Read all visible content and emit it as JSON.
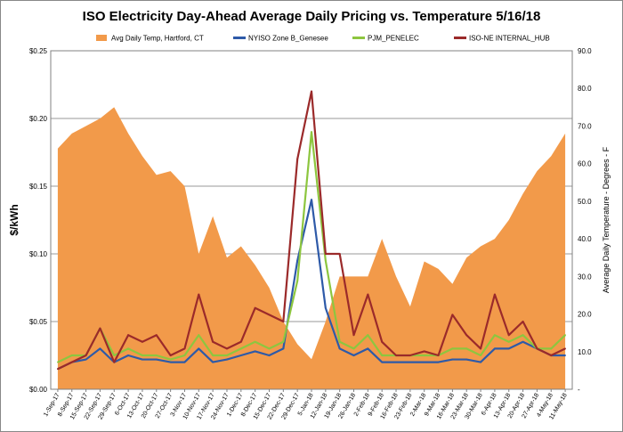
{
  "chart_data": {
    "type": "line",
    "title": "ISO Electricity Day-Ahead Average Daily Pricing vs. Temperature 5/16/18",
    "ylabel": "$/kWh",
    "y2label": "Average Daily Temperature - Degrees - F",
    "ylim": [
      0,
      0.25
    ],
    "y2lim": [
      0,
      90
    ],
    "yticks": [
      "$0.00",
      "$0.05",
      "$0.10",
      "$0.15",
      "$0.20",
      "$0.25"
    ],
    "y2ticks": [
      "-",
      "10.0",
      "20.0",
      "30.0",
      "40.0",
      "50.0",
      "60.0",
      "70.0",
      "80.0",
      "90.0"
    ],
    "grid": true,
    "legend_position": "top",
    "categories": [
      "1-Sep-17",
      "8-Sep-17",
      "15-Sep-17",
      "22-Sep-17",
      "29-Sep-17",
      "6-Oct-17",
      "13-Oct-17",
      "20-Oct-17",
      "27-Oct-17",
      "3-Nov-17",
      "10-Nov-17",
      "17-Nov-17",
      "24-Nov-17",
      "1-Dec-17",
      "8-Dec-17",
      "15-Dec-17",
      "22-Dec-17",
      "29-Dec-17",
      "5-Jan-18",
      "12-Jan-18",
      "19-Jan-18",
      "26-Jan-18",
      "2-Feb-18",
      "9-Feb-18",
      "16-Feb-18",
      "23-Feb-18",
      "2-Mar-18",
      "9-Mar-18",
      "16-Mar-18",
      "23-Mar-18",
      "30-Mar-18",
      "6-Apr-18",
      "13-Apr-18",
      "20-Apr-18",
      "27-Apr-18",
      "4-May-18",
      "11-May-18"
    ],
    "series": [
      {
        "name": "Avg Daily Temp, Hartford, CT",
        "kind": "area",
        "axis": "right",
        "color": "#F29A4A",
        "values": [
          64,
          68,
          70,
          72,
          75,
          68,
          62,
          57,
          58,
          54,
          36,
          46,
          35,
          38,
          33,
          27,
          18,
          12,
          8,
          18,
          30,
          30,
          30,
          40,
          30,
          22,
          34,
          32,
          28,
          35,
          38,
          40,
          45,
          52,
          58,
          62,
          68
        ]
      },
      {
        "name": "NYISO Zone B_Genesee",
        "kind": "line",
        "axis": "left",
        "color": "#2E5AA8",
        "values": [
          0.015,
          0.02,
          0.022,
          0.03,
          0.02,
          0.025,
          0.022,
          0.022,
          0.02,
          0.02,
          0.03,
          0.02,
          0.022,
          0.025,
          0.028,
          0.025,
          0.03,
          0.095,
          0.14,
          0.06,
          0.03,
          0.025,
          0.03,
          0.02,
          0.02,
          0.02,
          0.02,
          0.02,
          0.022,
          0.022,
          0.02,
          0.03,
          0.03,
          0.035,
          0.03,
          0.025,
          0.025
        ]
      },
      {
        "name": "PJM_PENELEC",
        "kind": "line",
        "axis": "left",
        "color": "#8DC63F",
        "values": [
          0.02,
          0.025,
          0.025,
          0.045,
          0.025,
          0.03,
          0.025,
          0.025,
          0.022,
          0.025,
          0.04,
          0.025,
          0.025,
          0.03,
          0.035,
          0.03,
          0.035,
          0.08,
          0.19,
          0.095,
          0.035,
          0.03,
          0.04,
          0.025,
          0.025,
          0.025,
          0.025,
          0.025,
          0.03,
          0.03,
          0.025,
          0.04,
          0.035,
          0.04,
          0.03,
          0.03,
          0.04
        ]
      },
      {
        "name": "ISO-NE INTERNAL_HUB",
        "kind": "line",
        "axis": "left",
        "color": "#9B2A2A",
        "values": [
          0.015,
          0.02,
          0.025,
          0.045,
          0.02,
          0.04,
          0.035,
          0.04,
          0.025,
          0.03,
          0.07,
          0.035,
          0.03,
          0.035,
          0.06,
          0.055,
          0.05,
          0.17,
          0.22,
          0.1,
          0.1,
          0.04,
          0.07,
          0.035,
          0.025,
          0.025,
          0.028,
          0.025,
          0.055,
          0.04,
          0.03,
          0.07,
          0.04,
          0.05,
          0.03,
          0.025,
          0.03
        ]
      }
    ]
  }
}
